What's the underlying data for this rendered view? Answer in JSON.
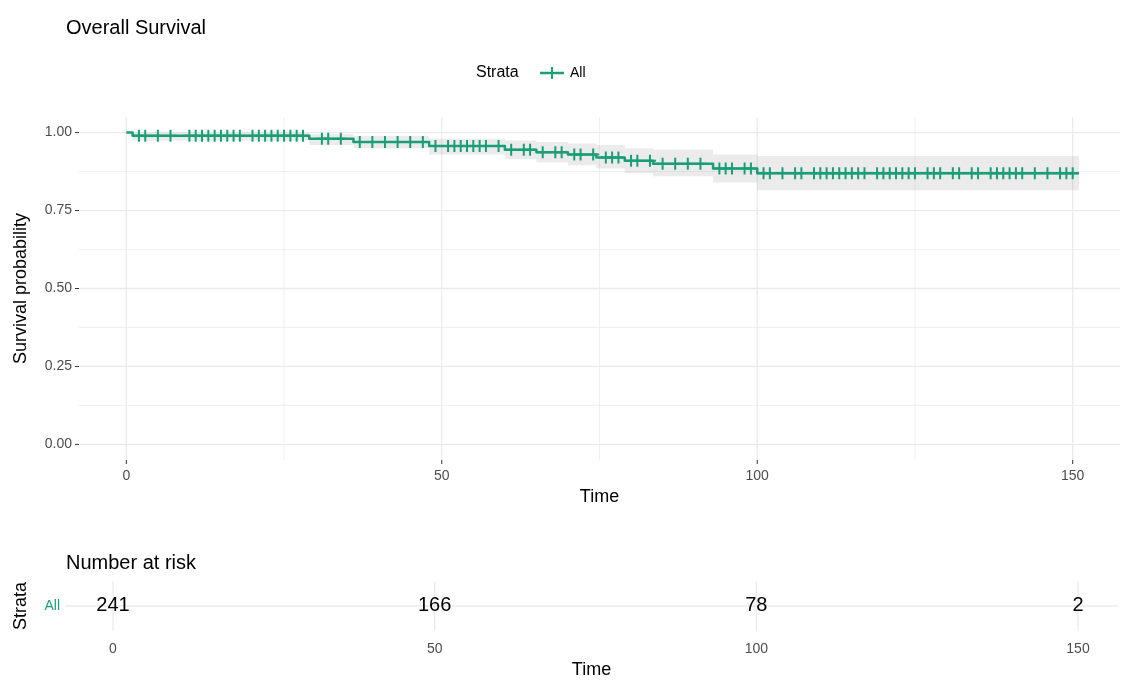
{
  "chart_data": [
    {
      "type": "step",
      "title": "Overall Survival",
      "xlabel": "Time",
      "ylabel": "Survival probability",
      "legend_title": "Strata",
      "legend": "top",
      "grid": true,
      "xlim": [
        -7.5,
        157.5
      ],
      "xticks": [
        0,
        {
          "value": 25,
          "label": null
        },
        50,
        {
          "value": 75,
          "label": null
        },
        100,
        {
          "value": 125,
          "label": null
        },
        150
      ],
      "ylim": [
        -0.05,
        1.05
      ],
      "yticks": [
        "0.00",
        {
          "value": 0.125,
          "label": null
        },
        {
          "value": 0.25,
          "label": "0.25"
        },
        {
          "value": 0.375,
          "label": null
        },
        {
          "value": 0.5,
          "label": "0.50"
        },
        {
          "value": 0.625,
          "label": null
        },
        {
          "value": 0.75,
          "label": "0.75"
        },
        {
          "value": 0.875,
          "label": null
        },
        {
          "value": 1,
          "label": "1.00"
        }
      ],
      "series": [
        {
          "name": "All",
          "type": "step",
          "color": "#1b9e77",
          "line_style": "solid",
          "marker": "none",
          "x": [
            0,
            1,
            29,
            36,
            48,
            60,
            65,
            70,
            74.5,
            79,
            83.5,
            93,
            100,
            151
          ],
          "values": [
            1,
            0.99,
            0.98,
            0.97,
            0.957,
            0.945,
            0.937,
            0.93,
            0.92,
            0.91,
            0.9,
            0.885,
            0.87,
            0.87
          ],
          "lower": [
            1,
            0.975,
            0.96,
            0.95,
            0.93,
            0.915,
            0.905,
            0.895,
            0.885,
            0.87,
            0.86,
            0.84,
            0.815,
            0.815
          ],
          "upper": [
            1,
            1,
            0.995,
            0.99,
            0.98,
            0.975,
            0.97,
            0.965,
            0.96,
            0.95,
            0.945,
            0.93,
            0.925,
            0.925
          ]
        },
        {
          "type": "scatter",
          "color": "#1b9e77",
          "marker": "cross",
          "x": [
            2,
            3,
            5,
            7,
            10,
            11,
            12,
            13,
            14,
            15,
            16,
            17,
            18,
            20,
            21,
            22,
            23,
            24,
            25,
            26,
            27,
            28,
            31,
            32,
            34,
            37,
            39,
            41,
            43,
            45,
            47,
            49,
            51,
            52,
            53,
            54,
            55,
            56,
            57,
            59,
            61,
            63,
            64,
            66,
            68,
            69,
            71,
            72,
            74,
            76,
            77,
            78,
            80,
            81,
            83,
            85,
            87,
            89,
            91,
            94,
            95,
            96,
            98,
            99,
            101,
            102,
            104,
            106,
            107,
            109,
            110,
            111,
            112,
            113,
            114,
            115,
            116,
            117,
            119,
            120,
            121,
            122,
            123,
            124,
            125,
            127,
            128,
            129,
            131,
            132,
            134,
            135,
            137,
            138,
            139,
            140,
            141,
            142,
            144,
            146,
            148,
            149,
            150
          ],
          "values": [
            0.99,
            0.99,
            0.99,
            0.99,
            0.99,
            0.99,
            0.99,
            0.99,
            0.99,
            0.99,
            0.99,
            0.99,
            0.99,
            0.99,
            0.99,
            0.99,
            0.99,
            0.99,
            0.99,
            0.99,
            0.99,
            0.99,
            0.98,
            0.98,
            0.98,
            0.97,
            0.97,
            0.97,
            0.97,
            0.97,
            0.97,
            0.957,
            0.957,
            0.957,
            0.957,
            0.957,
            0.957,
            0.957,
            0.957,
            0.957,
            0.945,
            0.945,
            0.945,
            0.937,
            0.937,
            0.937,
            0.93,
            0.93,
            0.93,
            0.92,
            0.92,
            0.92,
            0.91,
            0.91,
            0.91,
            0.9,
            0.9,
            0.9,
            0.9,
            0.885,
            0.885,
            0.885,
            0.885,
            0.885,
            0.87,
            0.87,
            0.87,
            0.87,
            0.87,
            0.87,
            0.87,
            0.87,
            0.87,
            0.87,
            0.87,
            0.87,
            0.87,
            0.87,
            0.87,
            0.87,
            0.87,
            0.87,
            0.87,
            0.87,
            0.87,
            0.87,
            0.87,
            0.87,
            0.87,
            0.87,
            0.87,
            0.87,
            0.87,
            0.87,
            0.87,
            0.87,
            0.87,
            0.87,
            0.87,
            0.87,
            0.87,
            0.87,
            0.87
          ]
        }
      ]
    },
    {
      "type": "heatmap",
      "title": "Number at risk",
      "xlabel": "Time",
      "ylabel": "Strata",
      "data_labels": true,
      "categories": [
        "0",
        "50",
        "100",
        "150"
      ],
      "y_categories": [
        "All"
      ],
      "cells": [
        [
          241,
          166,
          78,
          2
        ]
      ]
    }
  ]
}
